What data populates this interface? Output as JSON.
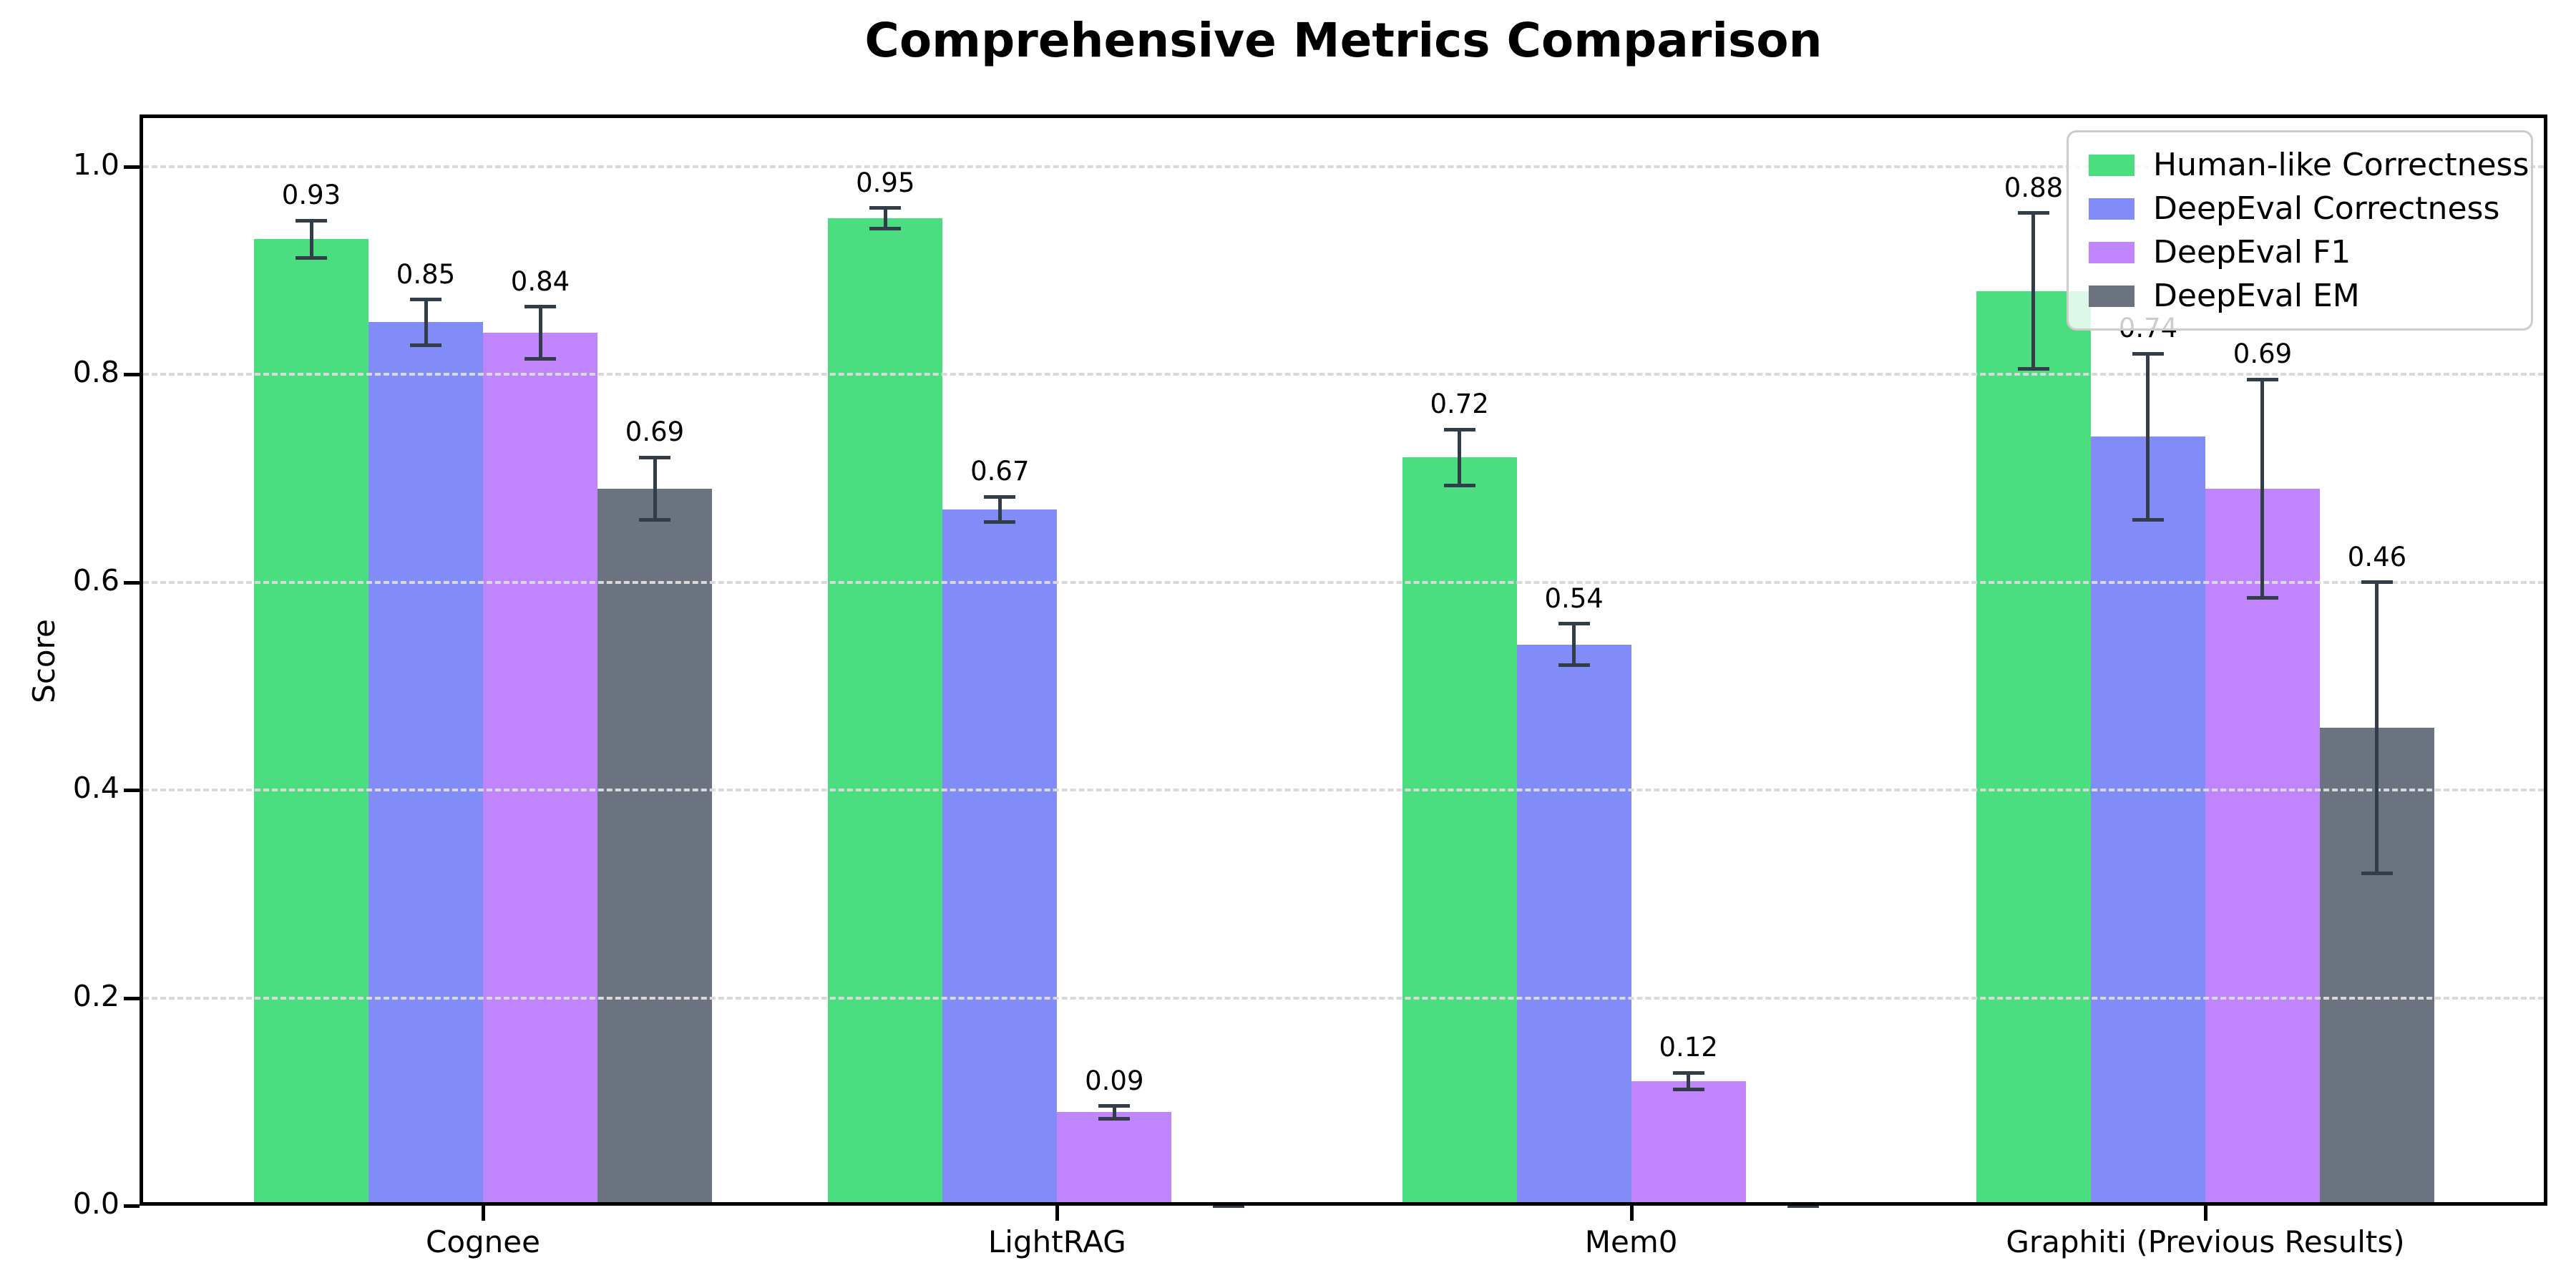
{
  "chart_data": {
    "type": "bar",
    "title": "Comprehensive Metrics Comparison",
    "xlabel": "",
    "ylabel": "Score",
    "categories": [
      "Cognee",
      "LightRAG",
      "Mem0",
      "Graphiti (Previous Results)"
    ],
    "series": [
      {
        "name": "Human-like Correctness",
        "color": "#4ade80",
        "values": [
          0.93,
          0.95,
          0.72,
          0.88
        ],
        "errors": [
          0.018,
          0.01,
          0.027,
          0.075
        ],
        "labels": [
          "0.93",
          "0.95",
          "0.72",
          "0.88"
        ]
      },
      {
        "name": "DeepEval Correctness",
        "color": "#818cf8",
        "values": [
          0.85,
          0.67,
          0.54,
          0.74
        ],
        "errors": [
          0.022,
          0.012,
          0.02,
          0.08
        ],
        "labels": [
          "0.85",
          "0.67",
          "0.54",
          "0.74"
        ]
      },
      {
        "name": "DeepEval F1",
        "color": "#c084fc",
        "values": [
          0.84,
          0.09,
          0.12,
          0.69
        ],
        "errors": [
          0.025,
          0.006,
          0.008,
          0.105
        ],
        "labels": [
          "0.84",
          "0.09",
          "0.12",
          "0.69"
        ]
      },
      {
        "name": "DeepEval EM",
        "color": "#6b7280",
        "values": [
          0.69,
          0.0,
          0.0,
          0.46
        ],
        "errors": [
          0.03,
          0.002,
          0.002,
          0.14
        ],
        "labels": [
          "0.69",
          null,
          null,
          "0.46"
        ]
      }
    ],
    "yticks": [
      "0.0",
      "0.2",
      "0.4",
      "0.6",
      "0.8",
      "1.0"
    ],
    "ytick_values": [
      0.0,
      0.2,
      0.4,
      0.6,
      0.8,
      1.0
    ],
    "ylim": [
      0,
      1.05
    ],
    "grid": "horizontal-dashed",
    "grid_color": "#d9d9d9",
    "legend_position": "upper right",
    "error_bar_color": "#333d49"
  }
}
